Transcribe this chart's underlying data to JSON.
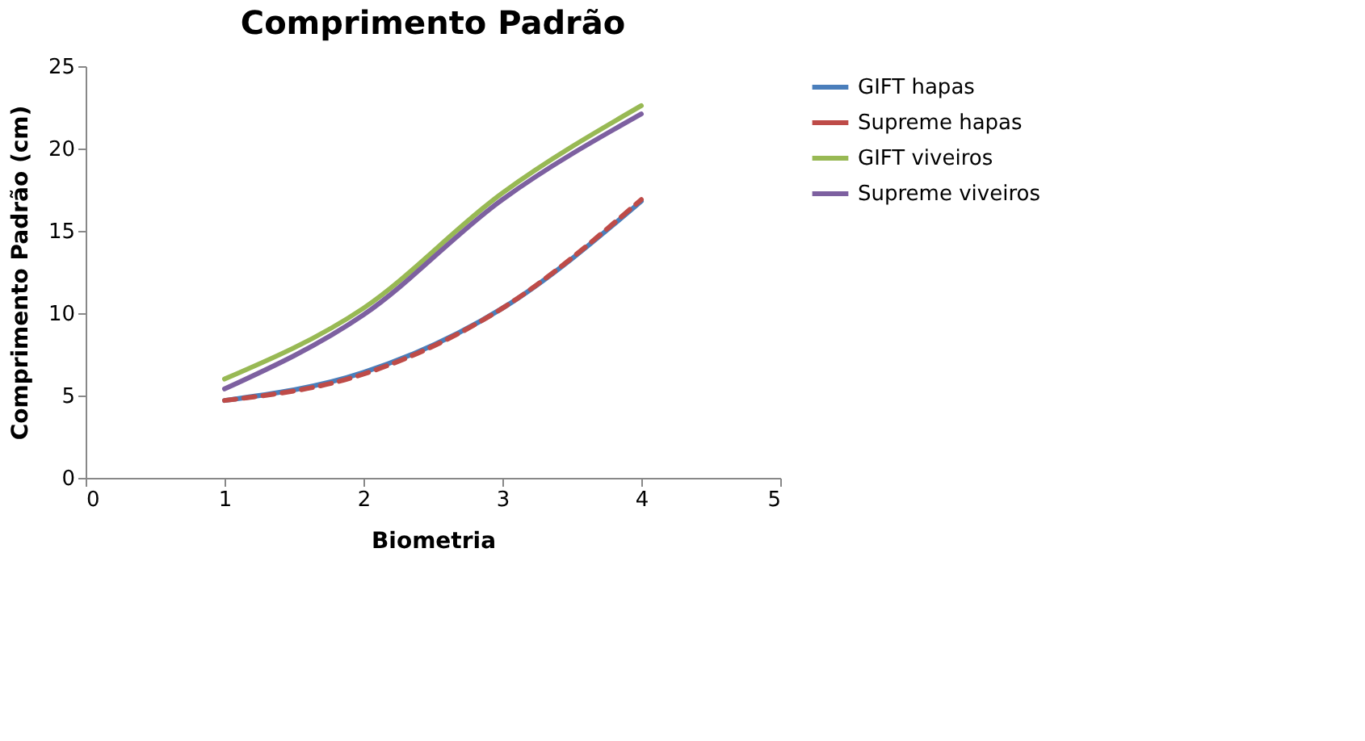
{
  "chart_data": {
    "type": "line",
    "title": "Comprimento Padrão",
    "xlabel": "Biometria",
    "ylabel": "Comprimento Padrão (cm)",
    "x": [
      1,
      2,
      3,
      4
    ],
    "xlim": [
      0,
      5
    ],
    "xticks": [
      0,
      1,
      2,
      3,
      4,
      5
    ],
    "ylim": [
      0,
      25
    ],
    "yticks": [
      0,
      5,
      10,
      15,
      20,
      25
    ],
    "grid": false,
    "legend": "right",
    "marker": "none",
    "series": [
      {
        "name": "GIFT hapas",
        "color": "#4a7ebb",
        "values": [
          4.7,
          6.4,
          10.3,
          16.8
        ],
        "line_style": "solid"
      },
      {
        "name": "Supreme hapas",
        "color": "#be4b48",
        "values": [
          4.7,
          6.3,
          10.3,
          16.9
        ],
        "line_style": "dashed"
      },
      {
        "name": "GIFT viveiros",
        "color": "#98b954",
        "values": [
          6.0,
          10.3,
          17.3,
          22.6
        ],
        "line_style": "solid"
      },
      {
        "name": "Supreme viveiros",
        "color": "#7d60a0",
        "values": [
          5.4,
          9.9,
          16.9,
          22.1
        ],
        "line_style": "solid"
      }
    ]
  }
}
